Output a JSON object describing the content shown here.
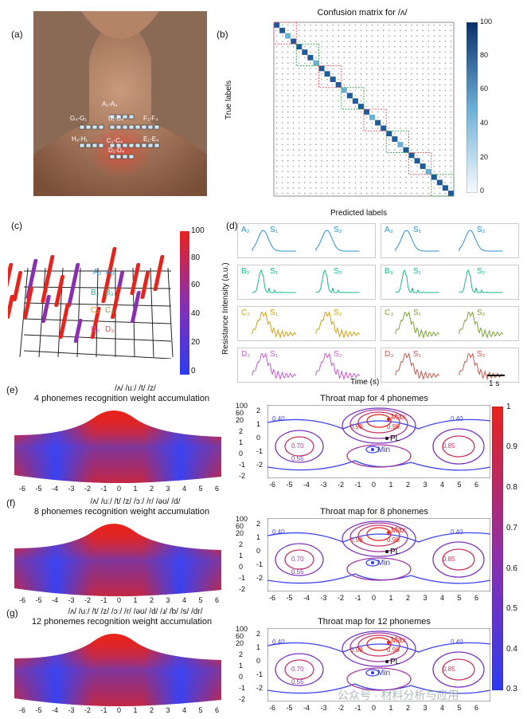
{
  "panels": {
    "a": {
      "label": "(a)",
      "neck_labels": [
        "A₁-A₄",
        "B₁-B₄",
        "G₄-G₁",
        "F₁-F₄",
        "H₄-H₁",
        "E₁-E₄",
        "C₁-C₄",
        "D₁-D₄"
      ]
    },
    "b": {
      "label": "(b)",
      "title": "Confusion matrix for /ʌ/",
      "ylabel": "True labels",
      "xlabel": "Predicted labels",
      "colorbar_ticks": [
        "100",
        "80",
        "60",
        "40",
        "20",
        "0"
      ]
    },
    "c": {
      "label": "(c)",
      "colorbar_ticks": [
        "100",
        "80",
        "60",
        "40",
        "20",
        "0"
      ],
      "marker_labels": [
        "A₂",
        "A₃",
        "B₂",
        "B₃",
        "C₂",
        "C₃",
        "D₂",
        "D₃"
      ]
    },
    "d": {
      "label": "(d)",
      "ylabel": "Resistance Intensity (a.u.)",
      "xlabel": "Time (s)",
      "scale": "1 s",
      "cells": [
        {
          "id": "A₂",
          "s1": "S₁",
          "s2": "S₂",
          "color": "#2a8fd6"
        },
        {
          "id": "A₃",
          "s1": "S₁",
          "s2": "S₂",
          "color": "#2a8fd6"
        },
        {
          "id": "B₂",
          "s1": "S₁",
          "s2": "S₂",
          "color": "#18b88a"
        },
        {
          "id": "B₃",
          "s1": "S₁",
          "s2": "S₂",
          "color": "#18b88a"
        },
        {
          "id": "C₂",
          "s1": "S₁",
          "s2": "S₂",
          "color": "#d4a017"
        },
        {
          "id": "C₃",
          "s1": "S₁",
          "s2": "S₂",
          "color": "#7aa33a"
        },
        {
          "id": "D₂",
          "s1": "S₁",
          "s2": "S₂",
          "color": "#c45bd0"
        },
        {
          "id": "D₃",
          "s1": "S₁",
          "s2": "S₂",
          "color": "#c9574a"
        }
      ]
    },
    "e": {
      "label": "(e)",
      "phonemes": "/ʌ/ /uː/  /t/  /z/",
      "title": "4 phonemes recognition weight accumulation",
      "map_title": "Throat map for 4 phonemes"
    },
    "f": {
      "label": "(f)",
      "phonemes": "/ʌ/ /uː/ /t/ /z/ /ɔː/ /r/ /əʊ/ /d/",
      "title": "8 phonemes recognition weight accumulation",
      "map_title": "Throat map for 8 phonemes"
    },
    "g": {
      "label": "(g)",
      "phonemes": "/ʌ/ /uː/ /t/ /z/ /ɔː/ /r/ /əʊ/ /d/ /ɹ/ /b/ /s/ /dr/",
      "title": "12 phonemes recognition weight accumulation",
      "map_title": "Throat map for 12 phonemes"
    }
  },
  "axes": {
    "x_ticks": [
      "-6",
      "-5",
      "-4",
      "-3",
      "-2",
      "-1",
      "0",
      "1",
      "2",
      "3",
      "4",
      "5",
      "6"
    ],
    "y_ticks": [
      "2",
      "1",
      "0",
      "-1",
      "-2"
    ],
    "z_ticks": [
      "100",
      "60",
      "20"
    ],
    "map_y_ticks": [
      "2",
      "1",
      "0",
      "-1",
      "-2"
    ]
  },
  "contour_labels": {
    "max": "Max",
    "min": "Min",
    "pl": "PL",
    "levels": [
      "0.40",
      "0.55",
      "0.70",
      "0.85",
      "0.98"
    ]
  },
  "map_colorbar_ticks": [
    "1",
    "0.9",
    "0.8",
    "0.7",
    "0.6",
    "0.5",
    "0.4",
    "0.3"
  ],
  "watermark": "公众号 · 材料分析与应用",
  "colors": {
    "red": "#e8231c",
    "blue": "#2d3bf0",
    "purple": "#8a2fb0",
    "navy": "#08306b"
  }
}
